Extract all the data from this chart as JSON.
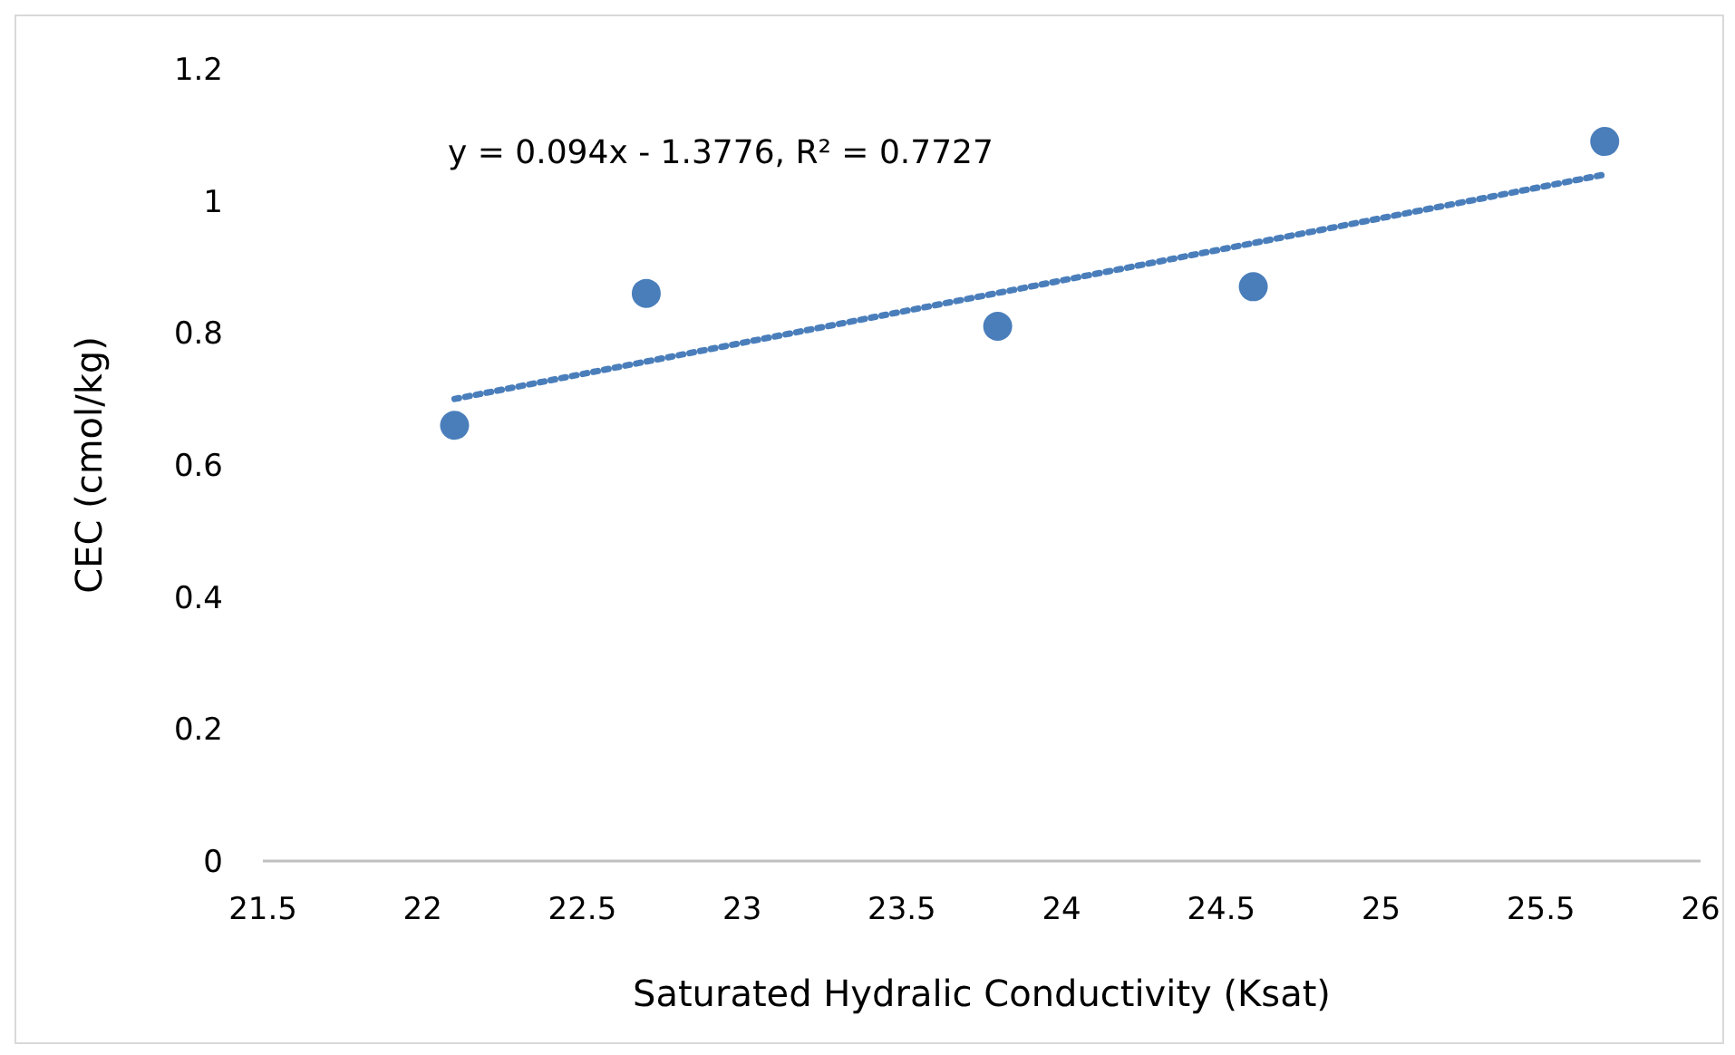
{
  "chart_data": {
    "type": "scatter",
    "xlabel": "Saturated Hydralic Conductivity (Ksat)",
    "ylabel": "CEC (cmol/kg)",
    "annotations": [
      "y = 0.094x - 1.3776,  R² = 0.7727"
    ],
    "xlim": [
      21.5,
      26
    ],
    "xticks": [
      21.5,
      22,
      22.5,
      23,
      23.5,
      24,
      24.5,
      25,
      25.5,
      26
    ],
    "ylim": [
      0,
      1.2
    ],
    "yticks": [
      0,
      {
        "value": 0.2,
        "label": "0.2"
      },
      {
        "value": 0.4,
        "label": "0.4"
      },
      {
        "value": 0.6,
        "label": "0.6"
      },
      {
        "value": 0.8,
        "label": "0.8"
      },
      1,
      {
        "value": 1.2,
        "label": "1.2"
      }
    ],
    "series": [
      {
        "color": "#4a7ebb",
        "marker": "circle",
        "x": [
          22.1,
          22.7,
          23.8,
          24.6,
          25.7
        ],
        "values": [
          0.66,
          0.86,
          0.81,
          0.87,
          1.09
        ]
      },
      {
        "type": "line",
        "color": "#4a7ebb",
        "marker": "none",
        "line_style": "dotted",
        "x": [
          22.1,
          25.7
        ],
        "values": [
          0.7,
          1.04
        ]
      }
    ]
  }
}
